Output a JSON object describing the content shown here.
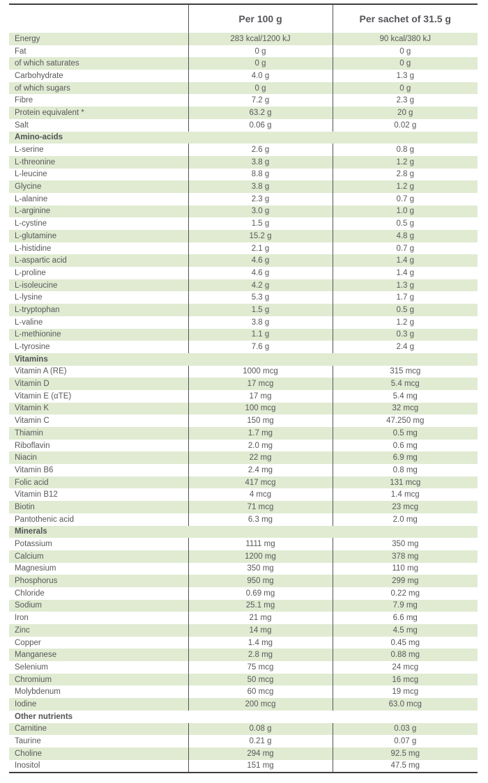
{
  "table": {
    "columns": {
      "label": "",
      "per_100g": "Per 100 g",
      "per_sachet": "Per sachet of 31.5 g"
    },
    "colors": {
      "row_highlight": "#e0ebd2",
      "text": "#58585a",
      "border": "#3d3e40"
    },
    "rows": [
      {
        "label": "Energy",
        "per100": "283 kcal/1200 kJ",
        "sachet": "90 kcal/380 kJ"
      },
      {
        "label": "Fat",
        "per100": "0 g",
        "sachet": "0 g"
      },
      {
        "label": "of which saturates",
        "per100": "0 g",
        "sachet": "0 g"
      },
      {
        "label": "Carbohydrate",
        "per100": "4.0 g",
        "sachet": "1.3 g"
      },
      {
        "label": "of which sugars",
        "per100": "0 g",
        "sachet": "0 g"
      },
      {
        "label": "Fibre",
        "per100": "7.2 g",
        "sachet": "2.3 g"
      },
      {
        "label": "Protein equivalent *",
        "per100": "63.2 g",
        "sachet": "20 g"
      },
      {
        "label": "Salt",
        "per100": "0.06 g",
        "sachet": "0.02 g"
      },
      {
        "section": "Amino-acids"
      },
      {
        "label": "L-serine",
        "per100": "2.6 g",
        "sachet": "0.8 g"
      },
      {
        "label": "L-threonine",
        "per100": "3.8 g",
        "sachet": "1.2 g"
      },
      {
        "label": "L-leucine",
        "per100": "8.8 g",
        "sachet": "2.8 g"
      },
      {
        "label": "Glycine",
        "per100": "3.8 g",
        "sachet": "1.2 g"
      },
      {
        "label": "L-alanine",
        "per100": "2.3 g",
        "sachet": "0.7 g"
      },
      {
        "label": "L-arginine",
        "per100": "3.0 g",
        "sachet": "1.0 g"
      },
      {
        "label": "L-cystine",
        "per100": "1.5 g",
        "sachet": "0.5 g"
      },
      {
        "label": "L-glutamine",
        "per100": "15.2 g",
        "sachet": "4.8 g"
      },
      {
        "label": "L-histidine",
        "per100": "2.1 g",
        "sachet": "0.7 g"
      },
      {
        "label": "L-aspartic acid",
        "per100": "4.6 g",
        "sachet": "1.4 g"
      },
      {
        "label": "L-proline",
        "per100": "4.6 g",
        "sachet": "1.4 g"
      },
      {
        "label": "L-isoleucine",
        "per100": "4.2 g",
        "sachet": "1.3 g"
      },
      {
        "label": "L-lysine",
        "per100": "5.3 g",
        "sachet": "1.7 g"
      },
      {
        "label": "L-tryptophan",
        "per100": "1.5 g",
        "sachet": "0.5 g"
      },
      {
        "label": "L-valine",
        "per100": "3.8 g",
        "sachet": "1.2 g"
      },
      {
        "label": "L-methionine",
        "per100": "1.1 g",
        "sachet": "0.3 g"
      },
      {
        "label": "L-tyrosine",
        "per100": "7.6 g",
        "sachet": "2.4 g"
      },
      {
        "section": "Vitamins"
      },
      {
        "label": "Vitamin A (RE)",
        "per100": "1000 mcg",
        "sachet": "315 mcg"
      },
      {
        "label": "Vitamin D",
        "per100": "17 mcg",
        "sachet": "5.4 mcg"
      },
      {
        "label": "Vitamin E (αTE)",
        "per100": "17 mg",
        "sachet": "5.4 mg"
      },
      {
        "label": "Vitamin K",
        "per100": "100 mcg",
        "sachet": "32 mcg"
      },
      {
        "label": "Vitamin C",
        "per100": "150 mg",
        "sachet": "47.250 mg"
      },
      {
        "label": "Thiamin",
        "per100": "1.7 mg",
        "sachet": "0.5 mg"
      },
      {
        "label": "Riboflavin",
        "per100": "2.0 mg",
        "sachet": "0.6 mg"
      },
      {
        "label": "Niacin",
        "per100": "22 mg",
        "sachet": "6.9 mg"
      },
      {
        "label": "Vitamin B6",
        "per100": "2.4 mg",
        "sachet": "0.8 mg"
      },
      {
        "label": "Folic acid",
        "per100": "417 mcg",
        "sachet": "131 mcg"
      },
      {
        "label": "Vitamin B12",
        "per100": "4 mcg",
        "sachet": "1.4 mcg"
      },
      {
        "label": "Biotin",
        "per100": "71 mcg",
        "sachet": "23 mcg"
      },
      {
        "label": "Pantothenic acid",
        "per100": "6.3 mg",
        "sachet": "2.0 mg"
      },
      {
        "section": "Minerals"
      },
      {
        "label": "Potassium",
        "per100": "1111 mg",
        "sachet": "350 mg"
      },
      {
        "label": "Calcium",
        "per100": "1200 mg",
        "sachet": "378 mg"
      },
      {
        "label": "Magnesium",
        "per100": "350 mg",
        "sachet": "110 mg"
      },
      {
        "label": "Phosphorus",
        "per100": "950 mg",
        "sachet": "299 mg"
      },
      {
        "label": "Chloride",
        "per100": "0.69 mg",
        "sachet": "0.22 mg"
      },
      {
        "label": "Sodium",
        "per100": "25.1 mg",
        "sachet": "7.9 mg"
      },
      {
        "label": "Iron",
        "per100": "21 mg",
        "sachet": "6.6 mg"
      },
      {
        "label": "Zinc",
        "per100": "14 mg",
        "sachet": "4.5 mg"
      },
      {
        "label": "Copper",
        "per100": "1.4 mg",
        "sachet": "0.45 mg"
      },
      {
        "label": "Manganese",
        "per100": "2.8 mg",
        "sachet": "0.88 mg"
      },
      {
        "label": "Selenium",
        "per100": "75 mcg",
        "sachet": "24 mcg"
      },
      {
        "label": "Chromium",
        "per100": "50 mcg",
        "sachet": "16 mcg"
      },
      {
        "label": "Molybdenum",
        "per100": "60 mcg",
        "sachet": "19 mcg"
      },
      {
        "label": "Iodine",
        "per100": "200 mcg",
        "sachet": "63.0 mcg"
      },
      {
        "section": "Other nutrients"
      },
      {
        "label": "Carnitine",
        "per100": "0.08 g",
        "sachet": "0.03 g"
      },
      {
        "label": "Taurine",
        "per100": "0.21 g",
        "sachet": "0.07 g"
      },
      {
        "label": "Choline",
        "per100": "294 mg",
        "sachet": "92.5 mg"
      },
      {
        "label": "Inositol",
        "per100": "151 mg",
        "sachet": "47.5 mg"
      }
    ]
  }
}
